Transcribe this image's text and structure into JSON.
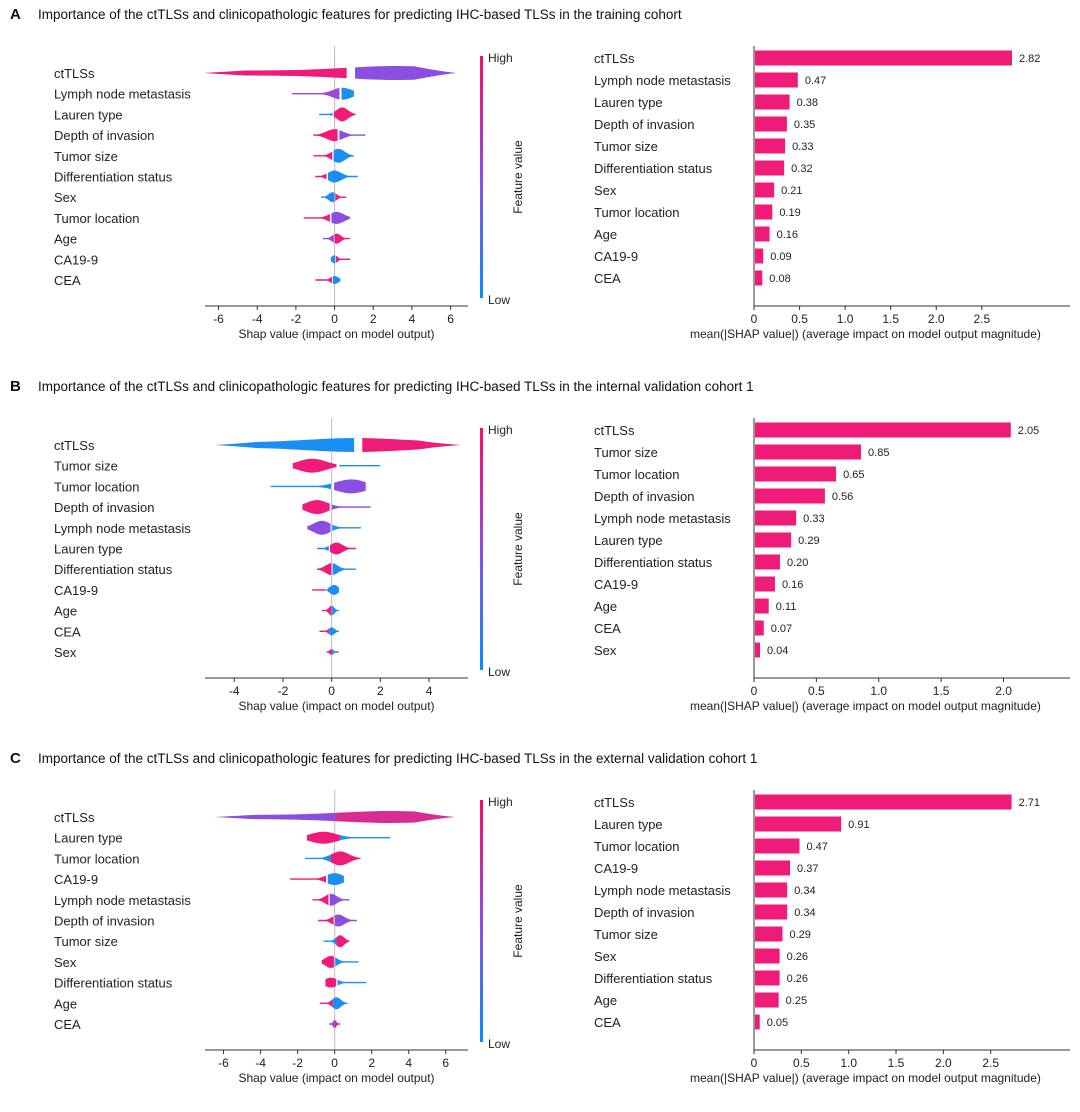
{
  "panels": [
    {
      "letter": "A",
      "title": "Importance of the ctTLSs and clinicopathologic features for predicting IHC-based TLSs in the training cohort",
      "shap_beeswarm": {
        "features": [
          "ctTLSs",
          "Lymph node metastasis",
          "Lauren type",
          "Depth of invasion",
          "Tumor size",
          "Differentiation status",
          "Sex",
          "Tumor location",
          "Age",
          "CA19-9",
          "CEA"
        ],
        "xticks": [
          -6,
          -4,
          -2,
          0,
          2,
          4,
          6
        ],
        "xlim": [
          -6.7,
          6.9
        ],
        "xlabel": "Shap value (impact on model output)",
        "colorbar": {
          "label": "Feature value",
          "high": "High",
          "low": "Low"
        },
        "shapes": [
          {
            "lo": -6.8,
            "hi": 6.3,
            "split": 1.0,
            "peak": 3.2,
            "w": 7,
            "neg": "#ee1b78",
            "pos": "#8a4ee0",
            "mode": "wide"
          },
          {
            "lo": -2.2,
            "hi": 1.0,
            "split": 0.3,
            "peak": 0.4,
            "w": 6,
            "neg": "#9b4ad8",
            "pos": "#1a8ef5",
            "mode": "norm"
          },
          {
            "lo": -0.8,
            "hi": 1.1,
            "split": -0.1,
            "peak": 0.4,
            "w": 7,
            "neg": "#1a8ef5",
            "pos": "#ee1b78",
            "mode": "norm"
          },
          {
            "lo": -1.1,
            "hi": 1.6,
            "split": 0.2,
            "peak": 0.0,
            "w": 6,
            "neg": "#ee1b78",
            "pos": "#8a4ee0",
            "mode": "norm"
          },
          {
            "lo": -1.1,
            "hi": 1.0,
            "split": -0.1,
            "peak": 0.2,
            "w": 7,
            "neg": "#ee1b78",
            "pos": "#1a8ef5",
            "mode": "norm"
          },
          {
            "lo": -1.0,
            "hi": 1.2,
            "split": -0.4,
            "peak": 0.0,
            "w": 6,
            "neg": "#ee1b78",
            "pos": "#1a8ef5",
            "mode": "norm"
          },
          {
            "lo": -0.7,
            "hi": 0.6,
            "split": 0.0,
            "peak": -0.1,
            "w": 5,
            "neg": "#1a8ef5",
            "pos": "#ee1b78",
            "mode": "norm"
          },
          {
            "lo": -1.6,
            "hi": 0.8,
            "split": -0.2,
            "peak": 0.1,
            "w": 6,
            "neg": "#ee1b78",
            "pos": "#8a4ee0",
            "mode": "norm"
          },
          {
            "lo": -0.6,
            "hi": 0.8,
            "split": 0.0,
            "peak": 0.1,
            "w": 5,
            "neg": "#8a4ee0",
            "pos": "#ee1b78",
            "mode": "norm"
          },
          {
            "lo": -0.2,
            "hi": 0.8,
            "split": 0.05,
            "peak": 0.0,
            "w": 4,
            "neg": "#1a8ef5",
            "pos": "#ee1b78",
            "mode": "norm"
          },
          {
            "lo": -1.0,
            "hi": 0.3,
            "split": -0.1,
            "peak": 0.0,
            "w": 4,
            "neg": "#ee1b78",
            "pos": "#1a8ef5",
            "mode": "norm"
          }
        ]
      },
      "chart_data": {
        "type": "bar",
        "orientation": "horizontal",
        "categories": [
          "ctTLSs",
          "Lymph node metastasis",
          "Lauren type",
          "Depth of invasion",
          "Tumor size",
          "Differentiation status",
          "Sex",
          "Tumor location",
          "Age",
          "CA19-9",
          "CEA"
        ],
        "values": [
          2.82,
          0.47,
          0.38,
          0.35,
          0.33,
          0.32,
          0.21,
          0.19,
          0.16,
          0.09,
          0.08
        ],
        "labels": [
          "2.82",
          "0.47",
          "0.38",
          "0.35",
          "0.33",
          "0.32",
          "0.21",
          "0.19",
          "0.16",
          "0.09",
          "0.08"
        ],
        "xlabel": "mean(|SHAP value|) (average impact on model output magnitude)",
        "xticks": [
          0,
          0.5,
          1.0,
          1.5,
          2.0,
          2.5
        ],
        "xticklabels": [
          "0",
          "0.5",
          "1.0",
          "1.5",
          "2.0",
          "2.5"
        ],
        "xlim": [
          0,
          2.93
        ],
        "color": "#ee1b78"
      }
    },
    {
      "letter": "B",
      "title": "Importance of the ctTLSs and clinicopathologic features for predicting IHC-based TLSs in the internal validation cohort 1",
      "shap_beeswarm": {
        "features": [
          "ctTLSs",
          "Tumor size",
          "Tumor location",
          "Depth of invasion",
          "Lymph node metastasis",
          "Lauren type",
          "Differentiation status",
          "CA19-9",
          "Age",
          "CEA",
          "Sex"
        ],
        "xticks": [
          -4,
          -2,
          0,
          2,
          4
        ],
        "xlim": [
          -5.2,
          5.6
        ],
        "xlabel": "Shap value (impact on model output)",
        "colorbar": {
          "label": "Feature value",
          "high": "High",
          "low": "Low"
        },
        "shapes": [
          {
            "lo": -4.8,
            "hi": 5.3,
            "split": 1.0,
            "peak": 1.0,
            "w": 7,
            "neg": "#1a8ef5",
            "pos": "#ee1b78",
            "mode": "wide"
          },
          {
            "lo": -1.6,
            "hi": 2.0,
            "split": 0.3,
            "peak": -0.8,
            "w": 7,
            "neg": "#ee1b78",
            "pos": "#1a8ef5",
            "mode": "norm"
          },
          {
            "lo": -2.5,
            "hi": 1.4,
            "split": 0.0,
            "peak": 0.8,
            "w": 7,
            "neg": "#1a8ef5",
            "pos": "#8a4ee0",
            "mode": "norm"
          },
          {
            "lo": -1.2,
            "hi": 1.6,
            "split": 0.0,
            "peak": -0.6,
            "w": 7,
            "neg": "#ee1b78",
            "pos": "#8a4ee0",
            "mode": "norm"
          },
          {
            "lo": -1.0,
            "hi": 1.2,
            "split": 0.0,
            "peak": -0.4,
            "w": 7,
            "neg": "#8a4ee0",
            "pos": "#1a8ef5",
            "mode": "norm"
          },
          {
            "lo": -0.6,
            "hi": 1.0,
            "split": -0.1,
            "peak": 0.2,
            "w": 6,
            "neg": "#1a8ef5",
            "pos": "#ee1b78",
            "mode": "norm"
          },
          {
            "lo": -0.6,
            "hi": 1.0,
            "split": 0.0,
            "peak": 0.0,
            "w": 6,
            "neg": "#ee1b78",
            "pos": "#1a8ef5",
            "mode": "norm"
          },
          {
            "lo": -0.8,
            "hi": 0.3,
            "split": -0.2,
            "peak": 0.1,
            "w": 5,
            "neg": "#ee1b78",
            "pos": "#1a8ef5",
            "mode": "norm"
          },
          {
            "lo": -0.4,
            "hi": 0.3,
            "split": 0.0,
            "peak": 0.0,
            "w": 5,
            "neg": "#ee1b78",
            "pos": "#1a8ef5",
            "mode": "norm"
          },
          {
            "lo": -0.5,
            "hi": 0.3,
            "split": -0.1,
            "peak": 0.0,
            "w": 4,
            "neg": "#ee1b78",
            "pos": "#1a8ef5",
            "mode": "norm"
          },
          {
            "lo": -0.2,
            "hi": 0.3,
            "split": 0.0,
            "peak": 0.0,
            "w": 3,
            "neg": "#ee1b78",
            "pos": "#1a8ef5",
            "mode": "norm"
          }
        ]
      },
      "chart_data": {
        "type": "bar",
        "orientation": "horizontal",
        "categories": [
          "ctTLSs",
          "Tumor size",
          "Tumor location",
          "Depth of invasion",
          "Lymph node metastasis",
          "Lauren type",
          "Differentiation status",
          "CA19-9",
          "Age",
          "CEA",
          "Sex"
        ],
        "values": [
          2.05,
          0.85,
          0.65,
          0.56,
          0.33,
          0.29,
          0.2,
          0.16,
          0.11,
          0.07,
          0.04
        ],
        "labels": [
          "2.05",
          "0.85",
          "0.65",
          "0.56",
          "0.33",
          "0.29",
          "0.20",
          "0.16",
          "0.11",
          "0.07",
          "0.04"
        ],
        "xlabel": "mean(|SHAP value|) (average impact on model output magnitude)",
        "xticks": [
          0,
          0.5,
          1.0,
          1.5,
          2.0
        ],
        "xticklabels": [
          "0",
          "0.5",
          "1.0",
          "1.5",
          "2.0"
        ],
        "xlim": [
          0,
          2.14
        ],
        "color": "#ee1b78"
      }
    },
    {
      "letter": "C",
      "title": "Importance of the ctTLSs and clinicopathologic features for predicting IHC-based TLSs in the external validation cohort 1",
      "shap_beeswarm": {
        "features": [
          "ctTLSs",
          "Lauren type",
          "Tumor location",
          "CA19-9",
          "Lymph node metastasis",
          "Depth of invasion",
          "Tumor size",
          "Sex",
          "Differentiation status",
          "Age",
          "CEA"
        ],
        "xticks": [
          -6,
          -4,
          -2,
          0,
          2,
          4,
          6
        ],
        "xlim": [
          -7.0,
          7.2
        ],
        "xlabel": "Shap value (impact on model output)",
        "colorbar": {
          "label": "Feature value",
          "high": "High",
          "low": "Low"
        },
        "shapes": [
          {
            "lo": -6.5,
            "hi": 6.5,
            "split": 0.0,
            "peak": 3.0,
            "w": 6,
            "neg": "#8a4ee0",
            "pos": "#d62c94",
            "mode": "wide"
          },
          {
            "lo": -1.5,
            "hi": 3.0,
            "split": 0.3,
            "peak": -0.6,
            "w": 6,
            "neg": "#ee1b78",
            "pos": "#1a8ef5",
            "mode": "norm"
          },
          {
            "lo": -1.6,
            "hi": 1.4,
            "split": -0.2,
            "peak": 0.3,
            "w": 7,
            "neg": "#1a8ef5",
            "pos": "#ee1b78",
            "mode": "norm"
          },
          {
            "lo": -2.4,
            "hi": 0.5,
            "split": -0.4,
            "peak": 0.0,
            "w": 6,
            "neg": "#ee1b78",
            "pos": "#1a8ef5",
            "mode": "norm"
          },
          {
            "lo": -1.2,
            "hi": 0.8,
            "split": -0.3,
            "peak": -0.2,
            "w": 6,
            "neg": "#ee1b78",
            "pos": "#8a4ee0",
            "mode": "norm"
          },
          {
            "lo": -0.9,
            "hi": 1.2,
            "split": 0.0,
            "peak": 0.2,
            "w": 6,
            "neg": "#ee1b78",
            "pos": "#8a4ee0",
            "mode": "norm"
          },
          {
            "lo": -0.6,
            "hi": 0.8,
            "split": 0.1,
            "peak": 0.3,
            "w": 6,
            "neg": "#1a8ef5",
            "pos": "#ee1b78",
            "mode": "norm"
          },
          {
            "lo": -0.7,
            "hi": 1.3,
            "split": 0.0,
            "peak": -0.2,
            "w": 6,
            "neg": "#ee1b78",
            "pos": "#1a8ef5",
            "mode": "norm"
          },
          {
            "lo": -0.5,
            "hi": 1.7,
            "split": 0.1,
            "peak": -0.2,
            "w": 5,
            "neg": "#ee1b78",
            "pos": "#1a8ef5",
            "mode": "norm"
          },
          {
            "lo": -0.8,
            "hi": 0.7,
            "split": -0.1,
            "peak": 0.1,
            "w": 6,
            "neg": "#ee1b78",
            "pos": "#1a8ef5",
            "mode": "norm"
          },
          {
            "lo": -0.3,
            "hi": 0.3,
            "split": 0.0,
            "peak": 0.0,
            "w": 4,
            "neg": "#8a4ee0",
            "pos": "#ee1b78",
            "mode": "norm"
          }
        ]
      },
      "chart_data": {
        "type": "bar",
        "orientation": "horizontal",
        "categories": [
          "ctTLSs",
          "Lauren type",
          "Tumor location",
          "CA19-9",
          "Lymph node metastasis",
          "Depth of invasion",
          "Tumor size",
          "Sex",
          "Differentiation status",
          "Age",
          "CEA"
        ],
        "values": [
          2.71,
          0.91,
          0.47,
          0.37,
          0.34,
          0.34,
          0.29,
          0.26,
          0.26,
          0.25,
          0.05
        ],
        "labels": [
          "2.71",
          "0.91",
          "0.47",
          "0.37",
          "0.34",
          "0.34",
          "0.29",
          "0.26",
          "0.26",
          "0.25",
          "0.05"
        ],
        "xlabel": "mean(|SHAP value|) (average impact on model output magnitude)",
        "xticks": [
          0,
          0.5,
          1.0,
          1.5,
          2.0,
          2.5
        ],
        "xticklabels": [
          "0",
          "0.5",
          "1.0",
          "1.5",
          "2.0",
          "2.5"
        ],
        "xlim": [
          0,
          2.82
        ],
        "color": "#ee1b78"
      }
    }
  ]
}
